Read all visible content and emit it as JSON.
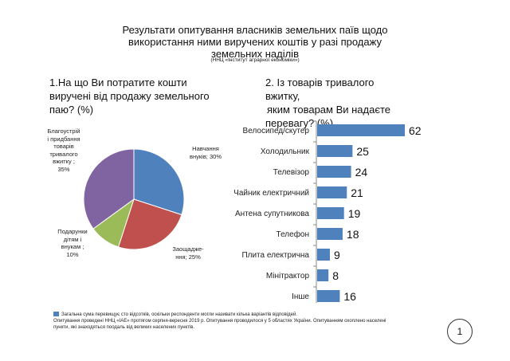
{
  "header": {
    "title_lines": [
      "Результати опитування власників земельних паїв щодо",
      "використання ними виручених коштів у разі продажу",
      "земельних наділів"
    ],
    "source": "(ННЦ «Інститут аграрної економіки»)"
  },
  "questions": {
    "q1": "1.На що Ви потратите кошти виручені від продажу земельного паю? (%)",
    "q2_line1": "2. Із товарів тривалого вжитку,",
    "q2_line2": "яким товарам Ви надаєте",
    "q2_line3": "перевагу? (%)"
  },
  "chart_data": [
    {
      "type": "pie",
      "slices": [
        {
          "label": "Навчання внуків; 30%",
          "value": 30,
          "color": "#4f81bd"
        },
        {
          "label": "Заощадже-ння; 25%",
          "value": 25,
          "color": "#c0504d"
        },
        {
          "label": "Подарунки дітям і внукам ; 10%",
          "value": 10,
          "color": "#9bbb59"
        },
        {
          "label": "Благоустрій і придбання товарів тривалого вжитку ; 35%",
          "value": 35,
          "color": "#8064a2"
        }
      ]
    },
    {
      "type": "bar",
      "orientation": "horizontal",
      "categories": [
        "Велосипед/скутер",
        "Холодильник",
        "Телевізор",
        "Чайник електричний",
        "Антена супутникова",
        "Телефон",
        "Плита електрична",
        "Мінітрактор",
        "Інше"
      ],
      "values": [
        62,
        25,
        24,
        21,
        19,
        18,
        9,
        8,
        16
      ],
      "color": "#4f81bd",
      "xlim": [
        0,
        62
      ]
    }
  ],
  "pie_labels": {
    "label_1_lines": [
      "Навчання",
      "внуків; 30%"
    ],
    "label_2_lines": [
      "Заощадже-",
      "ння; 25%"
    ],
    "label_3_lines": [
      "Подарунки",
      "дітям і",
      "внукам ;",
      "10%"
    ],
    "label_4_lines": [
      "Благоустрій",
      "і придбання",
      "товарів",
      "тривалого",
      "вжитку ;",
      "35%"
    ]
  },
  "footnote": {
    "line1": "Загальна сума перевищує сто відсотків, оскільки респонденти могли називати кілька варіантів відповідей.",
    "line2": "Опитування проведені ННЦ «ІАЕ» протягом серпня-вересня 2019 р. Опитування проводилося у 5 областях України. Опитуванням охоплено населені",
    "line3": "пункти, які знаходяться поодаль від великих населених пунктів."
  },
  "page_number": "1"
}
